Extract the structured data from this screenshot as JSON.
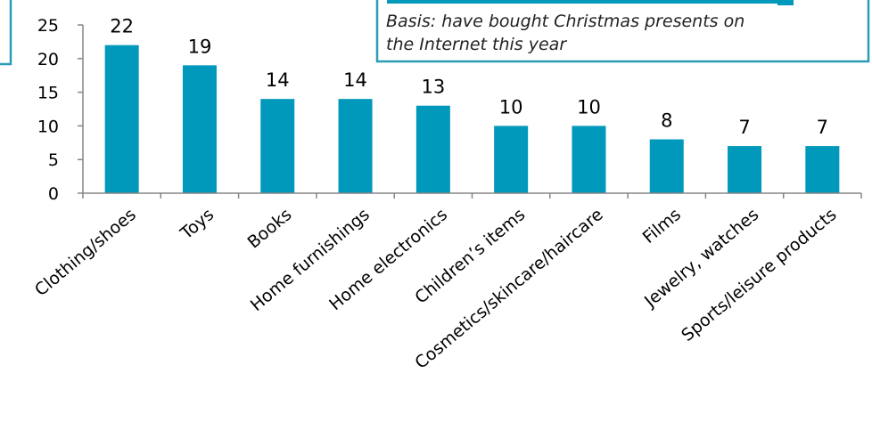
{
  "chart_data": {
    "type": "bar",
    "categories": [
      "Clothing/shoes",
      "Toys",
      "Books",
      "Home furnishings",
      "Home electronics",
      "Children’s items",
      "Cosmetics/skincare/haircare",
      "Films",
      "Jewelry, watches",
      "Sports/leisure products"
    ],
    "values": [
      22,
      19,
      14,
      14,
      13,
      10,
      10,
      8,
      7,
      7
    ],
    "ylim": [
      0,
      25
    ],
    "yticks": [
      0,
      5,
      10,
      15,
      20,
      25
    ],
    "grid": false,
    "data_labels": true,
    "bar_color": "#0099bb"
  },
  "annotation": {
    "lines": [
      "Basis: have bought Christmas presents on",
      "the Internet this year"
    ],
    "border_color": "#2a9bb5"
  }
}
